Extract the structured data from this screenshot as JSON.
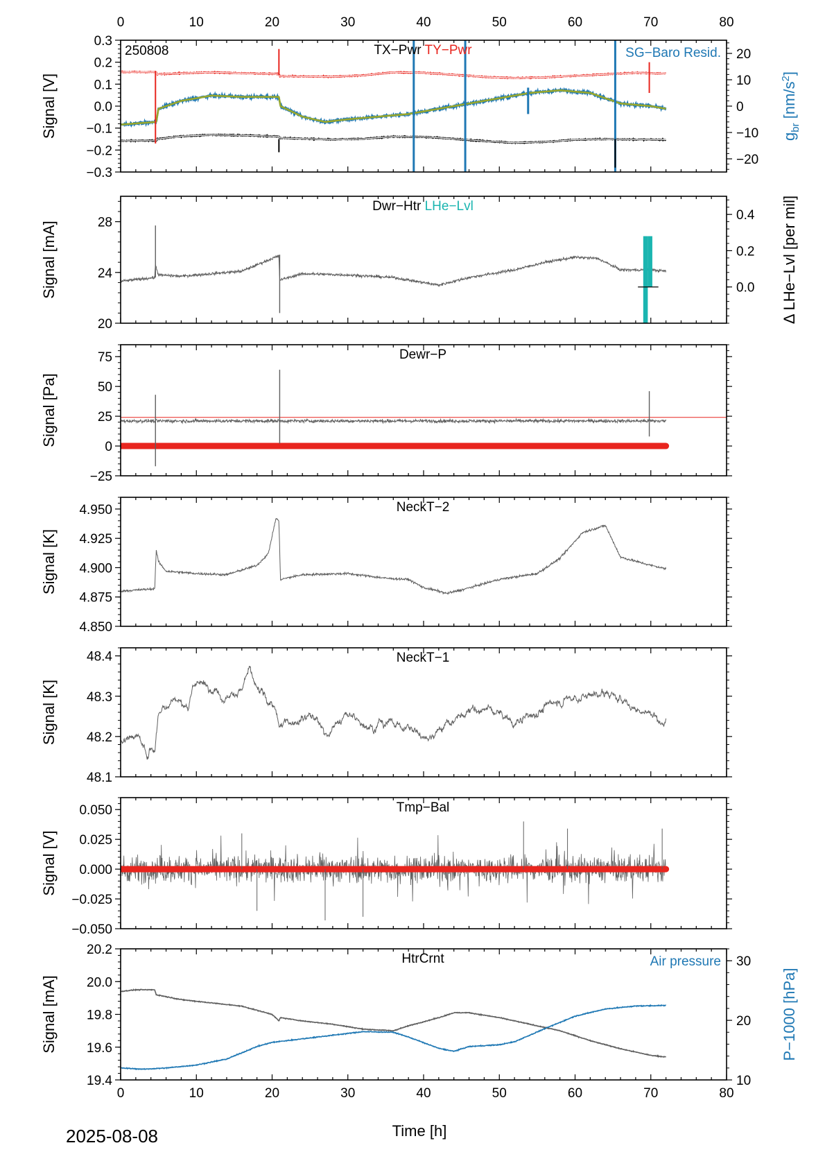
{
  "figure": {
    "date": "2025-08-08",
    "xlabel": "Time [h]",
    "xlim": [
      0,
      80
    ],
    "xticks": [
      0,
      10,
      20,
      30,
      40,
      50,
      60,
      70,
      80
    ]
  },
  "chart_data": [
    {
      "type": "line",
      "id": "p1",
      "annotation": "250808",
      "ylabel": "Signal [V]",
      "ylim": [
        -0.3,
        0.3
      ],
      "yticks": [
        -0.3,
        -0.2,
        -0.1,
        0.0,
        0.1,
        0.2,
        0.3
      ],
      "ytick_labels": [
        "−0.3",
        "−0.2",
        "−0.1",
        "0.0",
        "0.1",
        "0.2",
        "0.3"
      ],
      "y2label": "g_br [nm/s²]",
      "y2lim": [
        -25,
        25
      ],
      "y2ticks": [
        -20,
        -10,
        0,
        10,
        20
      ],
      "y2tick_labels": [
        "−20",
        "−10",
        "0",
        "10",
        "20"
      ],
      "titles": [
        {
          "text": "TX−Pwr",
          "color": "#000000"
        },
        {
          "text": "TY−Pwr",
          "color": "#e8251e"
        }
      ],
      "right_label": {
        "text": "SG−Baro Resid.",
        "color": "#1f78b4"
      },
      "series": [
        {
          "name": "TX−Pwr",
          "color": "#000000",
          "axis": "left",
          "x": [
            0,
            4.7,
            4.8,
            8,
            12,
            16,
            20.9,
            21,
            24,
            28,
            32,
            36,
            40,
            44,
            48,
            52,
            56,
            60,
            64,
            68,
            72
          ],
          "y": [
            -0.158,
            -0.157,
            -0.15,
            -0.137,
            -0.131,
            -0.133,
            -0.138,
            -0.145,
            -0.148,
            -0.152,
            -0.149,
            -0.139,
            -0.14,
            -0.149,
            -0.159,
            -0.167,
            -0.163,
            -0.153,
            -0.15,
            -0.152,
            -0.153
          ]
        },
        {
          "name": "TY−Pwr",
          "color": "#e8251e",
          "axis": "left",
          "x": [
            0,
            4.7,
            4.8,
            8,
            12,
            16,
            20.9,
            21,
            24,
            28,
            32,
            36,
            40,
            44,
            48,
            52,
            56,
            60,
            64,
            68,
            72
          ],
          "y": [
            0.155,
            0.155,
            0.145,
            0.15,
            0.154,
            0.15,
            0.146,
            0.137,
            0.135,
            0.134,
            0.14,
            0.154,
            0.152,
            0.143,
            0.133,
            0.128,
            0.131,
            0.138,
            0.145,
            0.152,
            0.148
          ]
        },
        {
          "name": "SG−Baro Resid.",
          "color": "#1f78b4",
          "axis": "right",
          "x": [
            0,
            4.7,
            5,
            8,
            12,
            16,
            20.9,
            21.1,
            24,
            27,
            30,
            34,
            38,
            42,
            46,
            50,
            54,
            58,
            62,
            66,
            70,
            72
          ],
          "y": [
            -7,
            -6,
            -1,
            2,
            4,
            3.5,
            3.5,
            0,
            -4,
            -6,
            -5,
            -4,
            -3,
            -1,
            1,
            3,
            5,
            6,
            5,
            1,
            0,
            -1
          ]
        },
        {
          "name": "SG−Baro Resid. fit",
          "color": "#9aa82c",
          "axis": "right",
          "x": [
            0,
            4.7,
            5,
            8,
            12,
            16,
            20.9,
            21.1,
            24,
            27,
            30,
            34,
            38,
            42,
            46,
            50,
            54,
            58,
            62,
            66,
            70,
            72
          ],
          "y": [
            -7,
            -6,
            -1,
            2,
            4,
            3.5,
            3.5,
            0,
            -4,
            -6,
            -5,
            -4,
            -3,
            -1,
            1,
            3,
            5,
            6,
            5,
            1,
            0,
            -1
          ]
        }
      ]
    },
    {
      "type": "line",
      "id": "p2",
      "ylabel": "Signal [mA]",
      "ylim": [
        20,
        30
      ],
      "yticks": [
        20,
        24,
        28
      ],
      "ytick_labels": [
        "20",
        "24",
        "28"
      ],
      "y2label": "Δ LHe−Lvl [per mil]",
      "y2lim": [
        -0.2,
        0.5
      ],
      "y2ticks": [
        0.0,
        0.2,
        0.4
      ],
      "y2tick_labels": [
        "0.0",
        "0.2",
        "0.4"
      ],
      "titles": [
        {
          "text": "Dwr−Htr",
          "color": "#000000"
        },
        {
          "text": "LHe−Lvl",
          "color": "#1bb5b0"
        }
      ],
      "series": [
        {
          "name": "Dwr−Htr",
          "color": "#5f5f5f",
          "axis": "left",
          "x": [
            0,
            4.5,
            4.6,
            5,
            8,
            12,
            16,
            20,
            20.9,
            21,
            24,
            30,
            36,
            40,
            42,
            46,
            52,
            56,
            60,
            63,
            66,
            70,
            72
          ],
          "y": [
            23.3,
            23.6,
            24.6,
            23.8,
            23.7,
            23.9,
            24.1,
            25.1,
            25.3,
            23.4,
            23.9,
            23.8,
            23.6,
            23.2,
            23.0,
            23.6,
            24.2,
            24.8,
            25.2,
            25.1,
            24.2,
            24.2,
            24.1
          ]
        },
        {
          "name": "LHe−Lvl",
          "color": "#1bb5b0",
          "axis": "right",
          "x": [
            69,
            69.2,
            69.4,
            69.6,
            69.8,
            70.0
          ],
          "y": [
            0.28,
            -0.28,
            0.28,
            0.28,
            0.28,
            0.28
          ]
        }
      ]
    },
    {
      "type": "line",
      "id": "p3",
      "ylabel": "Signal [Pa]",
      "ylim": [
        -25,
        85
      ],
      "yticks": [
        -25,
        0,
        25,
        50,
        75
      ],
      "ytick_labels": [
        "−25",
        "0",
        "25",
        "50",
        "75"
      ],
      "titles": [
        {
          "text": "Dewr−P",
          "color": "#000000"
        }
      ],
      "series": [
        {
          "name": "Dewr−P",
          "color": "#5f5f5f",
          "axis": "left",
          "x": [
            0,
            72
          ],
          "y": [
            21,
            21
          ]
        },
        {
          "name": "red reference",
          "color": "#e8251e",
          "axis": "left",
          "x": [
            0,
            72
          ],
          "y": [
            0,
            0
          ]
        },
        {
          "name": "threshold",
          "color": "#e8251e",
          "axis": "left",
          "x": [
            0,
            80
          ],
          "y": [
            24,
            24
          ]
        }
      ]
    },
    {
      "type": "line",
      "id": "p4",
      "ylabel": "Signal [K]",
      "ylim": [
        4.85,
        4.96
      ],
      "yticks": [
        4.85,
        4.875,
        4.9,
        4.925,
        4.95
      ],
      "ytick_labels": [
        "4.850",
        "4.875",
        "4.900",
        "4.925",
        "4.950"
      ],
      "titles": [
        {
          "text": "NeckT−2",
          "color": "#000000"
        }
      ],
      "series": [
        {
          "name": "NeckT−2",
          "color": "#5f5f5f",
          "axis": "left",
          "x": [
            0,
            4.5,
            4.7,
            5,
            6,
            10,
            14,
            18,
            19.5,
            20.5,
            20.9,
            21.1,
            24,
            30,
            35,
            38,
            40,
            42,
            43,
            45,
            50,
            55,
            58,
            61,
            63,
            64,
            66,
            70,
            72
          ],
          "y": [
            4.88,
            4.882,
            4.915,
            4.905,
            4.897,
            4.895,
            4.894,
            4.902,
            4.912,
            4.942,
            4.94,
            4.89,
            4.894,
            4.895,
            4.891,
            4.89,
            4.883,
            4.88,
            4.878,
            4.881,
            4.89,
            4.895,
            4.908,
            4.93,
            4.934,
            4.936,
            4.909,
            4.902,
            4.899
          ]
        }
      ]
    },
    {
      "type": "line",
      "id": "p5",
      "ylabel": "Signal [K]",
      "ylim": [
        48.1,
        48.42
      ],
      "yticks": [
        48.1,
        48.2,
        48.3,
        48.4
      ],
      "ytick_labels": [
        "48.1",
        "48.2",
        "48.3",
        "48.4"
      ],
      "titles": [
        {
          "text": "NeckT−1",
          "color": "#000000"
        }
      ],
      "series": [
        {
          "name": "NeckT−1",
          "color": "#5f5f5f",
          "axis": "left",
          "x": [
            0,
            2,
            3.5,
            4.5,
            5,
            7,
            9,
            10,
            12,
            14,
            16,
            17,
            18,
            20,
            21,
            22,
            25,
            27,
            30,
            33,
            35,
            38,
            40,
            42,
            45,
            48,
            50,
            52,
            55,
            58,
            61,
            63,
            65,
            67,
            69,
            72
          ],
          "y": [
            48.19,
            48.21,
            48.16,
            48.17,
            48.26,
            48.3,
            48.27,
            48.34,
            48.32,
            48.3,
            48.32,
            48.36,
            48.31,
            48.28,
            48.22,
            48.24,
            48.26,
            48.21,
            48.25,
            48.23,
            48.24,
            48.22,
            48.2,
            48.22,
            48.25,
            48.27,
            48.26,
            48.23,
            48.26,
            48.29,
            48.3,
            48.31,
            48.3,
            48.28,
            48.26,
            48.24
          ]
        }
      ]
    },
    {
      "type": "line",
      "id": "p6",
      "ylabel": "Signal [V]",
      "ylim": [
        -0.05,
        0.06
      ],
      "yticks": [
        -0.05,
        -0.025,
        0.0,
        0.025,
        0.05
      ],
      "ytick_labels": [
        "−0.050",
        "−0.025",
        "0.000",
        "0.025",
        "0.050"
      ],
      "titles": [
        {
          "text": "Tmp−Bal",
          "color": "#000000"
        }
      ],
      "series": [
        {
          "name": "Tmp−Bal",
          "color": "#5f5f5f",
          "axis": "left",
          "x": [
            0,
            72
          ],
          "y": [
            0.0,
            0.0
          ],
          "noise_band": [
            -0.02,
            0.02
          ]
        },
        {
          "name": "red reference",
          "color": "#e8251e",
          "axis": "left",
          "x": [
            0,
            72
          ],
          "y": [
            0.0,
            0.0
          ]
        }
      ]
    },
    {
      "type": "line",
      "id": "p7",
      "ylabel": "Signal [mA]",
      "ylim": [
        19.4,
        20.2
      ],
      "yticks": [
        19.4,
        19.6,
        19.8,
        20.0,
        20.2
      ],
      "ytick_labels": [
        "19.4",
        "19.6",
        "19.8",
        "20.0",
        "20.2"
      ],
      "y2label": "P−1000 [hPa]",
      "y2lim": [
        10,
        32
      ],
      "y2ticks": [
        10,
        20,
        30
      ],
      "y2tick_labels": [
        "10",
        "20",
        "30"
      ],
      "titles": [
        {
          "text": "HtrCrnt",
          "color": "#000000"
        }
      ],
      "right_label": {
        "text": "Air pressure",
        "color": "#1f78b4"
      },
      "series": [
        {
          "name": "HtrCrnt",
          "color": "#5f5f5f",
          "axis": "left",
          "x": [
            0,
            2,
            4.5,
            4.7,
            8,
            12,
            16,
            20,
            20.9,
            21.1,
            24,
            28,
            32,
            36,
            38,
            42,
            44,
            46,
            50,
            54,
            58,
            62,
            66,
            70,
            72
          ],
          "y": [
            19.94,
            19.95,
            19.95,
            19.92,
            19.89,
            19.87,
            19.85,
            19.8,
            19.76,
            19.78,
            19.76,
            19.74,
            19.71,
            19.7,
            19.73,
            19.78,
            19.81,
            19.81,
            19.78,
            19.74,
            19.7,
            19.64,
            19.59,
            19.55,
            19.54
          ]
        },
        {
          "name": "Air pressure",
          "color": "#1f78b4",
          "axis": "right",
          "x": [
            0,
            3,
            6,
            10,
            14,
            18,
            20,
            24,
            28,
            32,
            36,
            38,
            42,
            44,
            46,
            50,
            52,
            56,
            60,
            64,
            68,
            72
          ],
          "y": [
            12.0,
            11.8,
            12.0,
            12.5,
            13.5,
            15.6,
            16.3,
            16.9,
            17.5,
            18.1,
            18.0,
            17.2,
            15.3,
            14.8,
            15.6,
            15.9,
            16.4,
            18.6,
            20.7,
            21.9,
            22.4,
            22.5
          ]
        }
      ]
    }
  ]
}
